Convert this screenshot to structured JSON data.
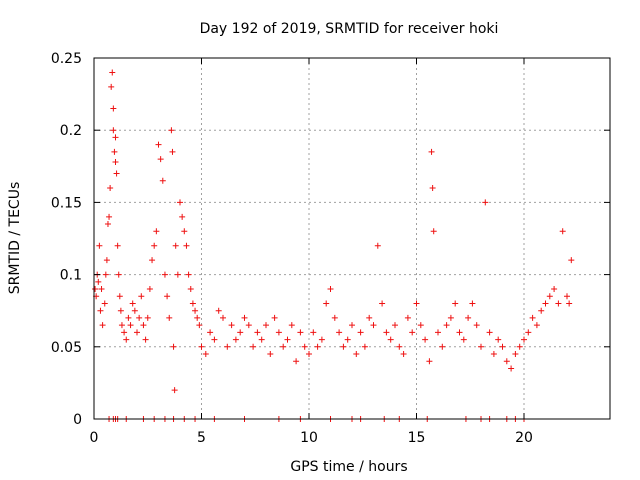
{
  "chart_data": {
    "type": "scatter",
    "title": "Day 192 of 2019, SRMTID for receiver hoki",
    "xlabel": "GPS time / hours",
    "ylabel": "SRMTID / TECUs",
    "xlim": [
      0,
      24
    ],
    "ylim": [
      0,
      0.25
    ],
    "xticks": [
      0,
      5,
      10,
      15,
      20
    ],
    "yticks": [
      0,
      0.05,
      0.1,
      0.15,
      0.2,
      0.25
    ],
    "xtick_labels": [
      "0",
      "5",
      "10",
      "15",
      "20"
    ],
    "ytick_labels": [
      "0",
      "0.05",
      "0.1",
      "0.15",
      "0.2",
      "0.25"
    ],
    "grid": true,
    "marker": "plus",
    "color": "#ee1111",
    "series": [
      {
        "x": [
          0.05,
          0.1,
          0.15,
          0.2,
          0.25,
          0.3,
          0.35,
          0.4,
          0.5,
          0.55,
          0.6,
          0.65,
          0.7,
          0.75,
          0.8,
          0.85,
          0.9,
          0.9,
          0.95,
          1.0,
          1.0,
          1.05,
          1.1,
          1.15,
          1.2,
          1.25,
          1.3,
          1.4,
          1.5,
          1.6,
          1.7,
          1.8,
          1.9,
          2.0,
          2.1,
          2.2,
          2.3,
          2.4,
          2.5,
          2.6,
          2.7,
          2.8,
          2.9,
          3.0,
          3.1,
          3.2,
          3.3,
          3.4,
          3.5,
          3.6,
          3.65,
          3.7,
          3.75,
          3.8,
          3.9,
          4.0,
          4.1,
          4.2,
          4.3,
          4.4,
          4.5,
          4.6,
          4.7,
          4.8,
          4.9,
          5.0,
          5.2,
          5.4,
          5.6,
          5.8,
          6.0,
          6.2,
          6.4,
          6.6,
          6.8,
          7.0,
          7.2,
          7.4,
          7.6,
          7.8,
          8.0,
          8.2,
          8.4,
          8.6,
          8.8,
          9.0,
          9.2,
          9.4,
          9.6,
          9.8,
          10.0,
          10.2,
          10.4,
          10.6,
          10.8,
          11.0,
          11.2,
          11.4,
          11.6,
          11.8,
          12.0,
          12.2,
          12.4,
          12.6,
          12.8,
          13.0,
          13.2,
          13.4,
          13.6,
          13.8,
          14.0,
          14.2,
          14.4,
          14.6,
          14.8,
          15.0,
          15.2,
          15.4,
          15.6,
          15.7,
          15.75,
          15.8,
          16.0,
          16.2,
          16.4,
          16.6,
          16.8,
          17.0,
          17.2,
          17.4,
          17.6,
          17.8,
          18.0,
          18.2,
          18.4,
          18.6,
          18.8,
          19.0,
          19.2,
          19.4,
          19.6,
          19.8,
          20.0,
          20.2,
          20.4,
          20.6,
          20.8,
          21.0,
          21.2,
          21.4,
          21.6,
          21.8,
          22.0,
          22.1,
          22.2
        ],
        "y": [
          0.09,
          0.085,
          0.1,
          0.095,
          0.12,
          0.075,
          0.09,
          0.065,
          0.08,
          0.1,
          0.11,
          0.135,
          0.14,
          0.16,
          0.23,
          0.24,
          0.215,
          0.2,
          0.185,
          0.178,
          0.195,
          0.17,
          0.12,
          0.1,
          0.085,
          0.075,
          0.065,
          0.06,
          0.055,
          0.07,
          0.065,
          0.08,
          0.075,
          0.06,
          0.07,
          0.085,
          0.065,
          0.055,
          0.07,
          0.09,
          0.11,
          0.12,
          0.13,
          0.19,
          0.18,
          0.165,
          0.1,
          0.085,
          0.07,
          0.2,
          0.185,
          0.05,
          0.02,
          0.12,
          0.1,
          0.15,
          0.14,
          0.13,
          0.12,
          0.1,
          0.09,
          0.08,
          0.075,
          0.07,
          0.065,
          0.05,
          0.045,
          0.06,
          0.055,
          0.075,
          0.07,
          0.05,
          0.065,
          0.055,
          0.06,
          0.07,
          0.065,
          0.05,
          0.06,
          0.055,
          0.065,
          0.045,
          0.07,
          0.06,
          0.05,
          0.055,
          0.065,
          0.04,
          0.06,
          0.05,
          0.045,
          0.06,
          0.05,
          0.055,
          0.08,
          0.09,
          0.07,
          0.06,
          0.05,
          0.055,
          0.065,
          0.045,
          0.06,
          0.05,
          0.07,
          0.065,
          0.12,
          0.08,
          0.06,
          0.055,
          0.065,
          0.05,
          0.045,
          0.07,
          0.06,
          0.08,
          0.065,
          0.055,
          0.04,
          0.185,
          0.16,
          0.13,
          0.06,
          0.05,
          0.065,
          0.07,
          0.08,
          0.06,
          0.055,
          0.07,
          0.08,
          0.065,
          0.05,
          0.15,
          0.06,
          0.045,
          0.055,
          0.05,
          0.04,
          0.035,
          0.045,
          0.05,
          0.055,
          0.06,
          0.07,
          0.065,
          0.075,
          0.08,
          0.085,
          0.09,
          0.08,
          0.13,
          0.085,
          0.08,
          0.11
        ]
      }
    ],
    "baseline_markers_x": [
      0.7,
      0.9,
      1.0,
      1.1,
      1.5,
      2.3,
      2.8,
      3.3,
      3.7,
      4.2,
      4.7,
      5.6,
      7.0,
      8.6,
      9.6,
      11.0,
      12.0,
      12.4,
      13.5,
      14.2,
      15.5,
      17.3,
      18.0,
      18.4,
      19.2,
      19.6,
      20.0
    ]
  }
}
